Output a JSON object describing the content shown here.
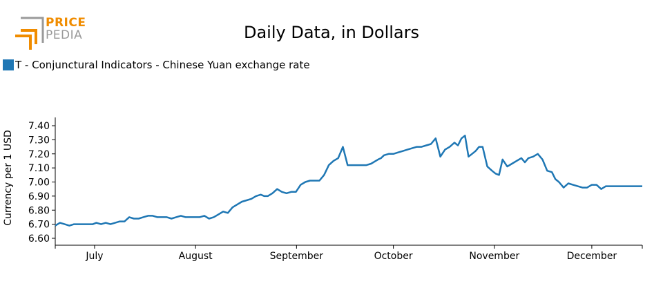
{
  "logo": {
    "line1": "PRICE",
    "line2": "PEDIA"
  },
  "chart_data": {
    "type": "line",
    "title": "Daily Data, in Dollars",
    "ylabel": "Currency per 1 USD",
    "xlabel": "",
    "ylim": [
      6.6,
      7.4
    ],
    "yticks": [
      "7.40",
      "7.30",
      "7.20",
      "7.10",
      "7.00",
      "6.90",
      "6.80",
      "6.70",
      "6.60"
    ],
    "ytick_values": [
      7.4,
      7.3,
      7.2,
      7.1,
      7.0,
      6.9,
      6.8,
      6.7,
      6.6
    ],
    "xticks": [
      "July",
      "August",
      "September",
      "October",
      "November",
      "December"
    ],
    "xtick_pos": [
      0.067,
      0.239,
      0.411,
      0.576,
      0.748,
      0.914
    ],
    "legend_position": "top-left",
    "series": [
      {
        "name": "T - Conjunctural Indicators - Chinese Yuan exchange rate",
        "color": "#1f77b4",
        "x": [
          0.0,
          0.008,
          0.016,
          0.024,
          0.032,
          0.04,
          0.048,
          0.056,
          0.064,
          0.07,
          0.078,
          0.086,
          0.094,
          0.102,
          0.11,
          0.118,
          0.126,
          0.134,
          0.142,
          0.15,
          0.158,
          0.166,
          0.174,
          0.182,
          0.19,
          0.198,
          0.206,
          0.214,
          0.222,
          0.23,
          0.238,
          0.246,
          0.254,
          0.262,
          0.27,
          0.278,
          0.286,
          0.294,
          0.302,
          0.31,
          0.318,
          0.326,
          0.334,
          0.342,
          0.35,
          0.356,
          0.362,
          0.37,
          0.378,
          0.386,
          0.394,
          0.402,
          0.41,
          0.418,
          0.426,
          0.434,
          0.442,
          0.45,
          0.458,
          0.466,
          0.474,
          0.482,
          0.49,
          0.498,
          0.506,
          0.514,
          0.522,
          0.53,
          0.538,
          0.546,
          0.55,
          0.555,
          0.56,
          0.568,
          0.576,
          0.584,
          0.592,
          0.6,
          0.608,
          0.616,
          0.624,
          0.632,
          0.64,
          0.648,
          0.656,
          0.664,
          0.672,
          0.68,
          0.686,
          0.692,
          0.698,
          0.704,
          0.71,
          0.716,
          0.722,
          0.728,
          0.736,
          0.744,
          0.75,
          0.756,
          0.762,
          0.77,
          0.778,
          0.786,
          0.794,
          0.8,
          0.806,
          0.814,
          0.822,
          0.83,
          0.838,
          0.846,
          0.852,
          0.858,
          0.866,
          0.874,
          0.882,
          0.89,
          0.898,
          0.906,
          0.914,
          0.922,
          0.93,
          0.938,
          0.944,
          0.95,
          0.958,
          0.966,
          0.974,
          0.982,
          0.99,
          1.0
        ],
        "values": [
          6.69,
          6.71,
          6.7,
          6.69,
          6.7,
          6.7,
          6.7,
          6.7,
          6.7,
          6.71,
          6.7,
          6.71,
          6.7,
          6.71,
          6.72,
          6.72,
          6.75,
          6.74,
          6.74,
          6.75,
          6.76,
          6.76,
          6.75,
          6.75,
          6.75,
          6.74,
          6.75,
          6.76,
          6.75,
          6.75,
          6.75,
          6.75,
          6.76,
          6.74,
          6.75,
          6.77,
          6.79,
          6.78,
          6.82,
          6.84,
          6.86,
          6.87,
          6.88,
          6.9,
          6.91,
          6.9,
          6.9,
          6.92,
          6.95,
          6.93,
          6.92,
          6.93,
          6.93,
          6.98,
          7.0,
          7.01,
          7.01,
          7.01,
          7.05,
          7.12,
          7.15,
          7.17,
          7.25,
          7.12,
          7.12,
          7.12,
          7.12,
          7.12,
          7.13,
          7.15,
          7.16,
          7.17,
          7.19,
          7.2,
          7.2,
          7.21,
          7.22,
          7.23,
          7.24,
          7.25,
          7.25,
          7.26,
          7.27,
          7.31,
          7.18,
          7.23,
          7.25,
          7.28,
          7.26,
          7.31,
          7.33,
          7.18,
          7.2,
          7.22,
          7.25,
          7.25,
          7.11,
          7.08,
          7.06,
          7.05,
          7.16,
          7.11,
          7.13,
          7.15,
          7.17,
          7.14,
          7.17,
          7.18,
          7.2,
          7.16,
          7.08,
          7.07,
          7.02,
          7.0,
          6.96,
          6.99,
          6.98,
          6.97,
          6.96,
          6.96,
          6.98,
          6.98,
          6.95,
          6.97,
          6.97,
          6.97,
          6.97,
          6.97,
          6.97,
          6.97,
          6.97,
          6.97
        ]
      }
    ]
  }
}
